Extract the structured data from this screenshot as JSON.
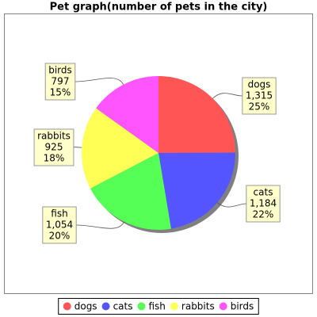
{
  "chart_data": {
    "type": "pie",
    "title": "Pet graph(number of pets in the city)",
    "categories": [
      "dogs",
      "cats",
      "fish",
      "rabbits",
      "birds"
    ],
    "values": [
      1315,
      1184,
      1054,
      925,
      797
    ],
    "value_labels": [
      "1,315",
      "1,184",
      "1,054",
      "925",
      "797"
    ],
    "percent_labels": [
      "25%",
      "22%",
      "20%",
      "18%",
      "15%"
    ],
    "colors": [
      "#ff5555",
      "#5555ff",
      "#55ff55",
      "#ffff55",
      "#ff55ff"
    ],
    "legend": "bottom"
  }
}
